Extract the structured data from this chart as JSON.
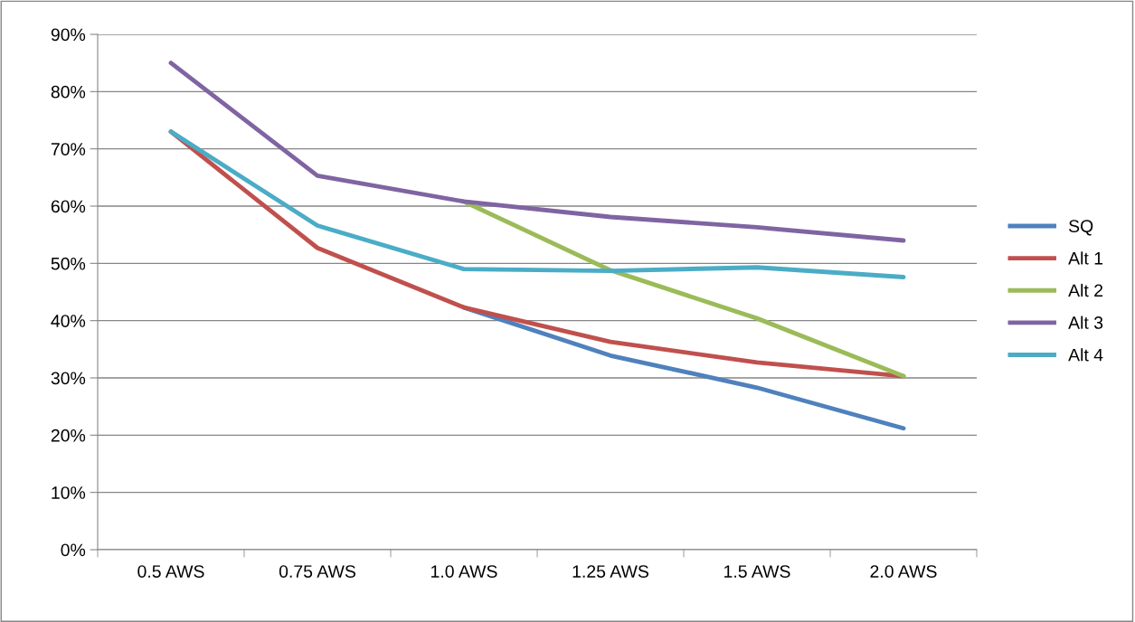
{
  "chart_data": {
    "type": "line",
    "categories": [
      "0.5 AWS",
      "0.75 AWS",
      "1.0 AWS",
      "1.25 AWS",
      "1.5 AWS",
      "2.0 AWS"
    ],
    "series": [
      {
        "name": "SQ",
        "color": "#4f81bd",
        "values": [
          null,
          null,
          42.3,
          33.9,
          28.3,
          21.2
        ]
      },
      {
        "name": "Alt 1",
        "color": "#c0504d",
        "values": [
          73,
          52.7,
          42.3,
          36.3,
          32.7,
          30.3
        ]
      },
      {
        "name": "Alt 2",
        "color": "#9bbb59",
        "values": [
          null,
          null,
          60.8,
          48.8,
          40.4,
          30.3
        ]
      },
      {
        "name": "Alt 3",
        "color": "#8064a2",
        "values": [
          85,
          65.3,
          60.8,
          58.1,
          56.3,
          54.0
        ]
      },
      {
        "name": "Alt 4",
        "color": "#4bacc6",
        "values": [
          73,
          56.6,
          49.0,
          48.7,
          49.3,
          47.6
        ]
      }
    ],
    "ylim": [
      0,
      90
    ],
    "yticks": [
      {
        "value": 0,
        "label": "0%"
      },
      {
        "value": 10,
        "label": "10%"
      },
      {
        "value": 20,
        "label": "20%"
      },
      {
        "value": 30,
        "label": "30%"
      },
      {
        "value": 40,
        "label": "40%"
      },
      {
        "value": 50,
        "label": "50%"
      },
      {
        "value": 60,
        "label": "60%"
      },
      {
        "value": 70,
        "label": "70%"
      },
      {
        "value": 80,
        "label": "80%"
      },
      {
        "value": 90,
        "label": "90%"
      }
    ],
    "grid": "y",
    "legend": "right",
    "marker": "none",
    "line_style": "solid"
  }
}
